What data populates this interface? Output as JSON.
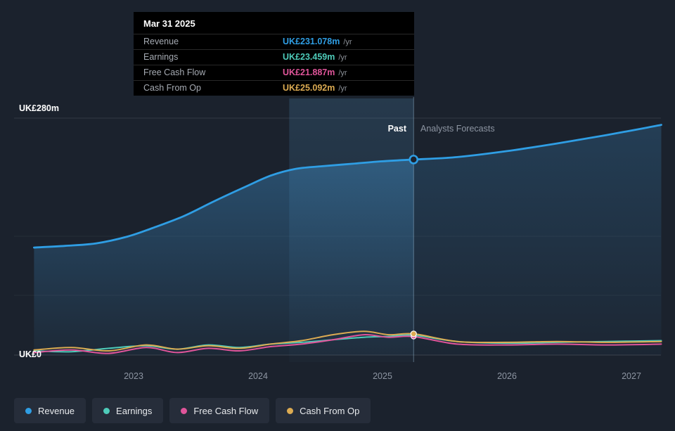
{
  "colors": {
    "background": "#1b222d",
    "revenue": "#2f9ee4",
    "earnings": "#4ecbb9",
    "free_cash_flow": "#e0559a",
    "cash_from_op": "#dcab52"
  },
  "tooltip": {
    "date": "Mar 31 2025",
    "rows": [
      {
        "label": "Revenue",
        "value": "UK£231.078m",
        "suffix": "/yr",
        "color": "#2f9ee4"
      },
      {
        "label": "Earnings",
        "value": "UK£23.459m",
        "suffix": "/yr",
        "color": "#4ecbb9"
      },
      {
        "label": "Free Cash Flow",
        "value": "UK£21.887m",
        "suffix": "/yr",
        "color": "#e0559a"
      },
      {
        "label": "Cash From Op",
        "value": "UK£25.092m",
        "suffix": "/yr",
        "color": "#dcab52"
      }
    ]
  },
  "axis": {
    "y_top_label": "UK£280m",
    "y_bottom_label": "UK£0",
    "x_ticks": [
      2023,
      2024,
      2025,
      2026,
      2027
    ]
  },
  "labels": {
    "past": "Past",
    "forecast": "Analysts Forecasts"
  },
  "legend": [
    {
      "label": "Revenue",
      "color": "#2f9ee4"
    },
    {
      "label": "Earnings",
      "color": "#4ecbb9"
    },
    {
      "label": "Free Cash Flow",
      "color": "#e0559a"
    },
    {
      "label": "Cash From Op",
      "color": "#dcab52"
    }
  ],
  "chart_data": {
    "type": "area",
    "x_unit": "year",
    "title": "",
    "xlabel": "",
    "ylabel": "UK£ millions",
    "ylim": [
      0,
      280
    ],
    "x_ticks": [
      2023,
      2024,
      2025,
      2026,
      2027
    ],
    "y_axis_labels": [
      "UK£0",
      "UK£280m"
    ],
    "divider_x": 2025.25,
    "divider_label_left": "Past",
    "divider_label_right": "Analysts Forecasts",
    "highlight_range": [
      2024.25,
      2025.25
    ],
    "series": [
      {
        "name": "Revenue",
        "color": "#2f9ee4",
        "x": [
          2022.2,
          2022.45,
          2022.7,
          2022.95,
          2023.15,
          2023.4,
          2023.65,
          2023.9,
          2024.1,
          2024.3,
          2024.5,
          2024.75,
          2025.0,
          2025.25,
          2025.6,
          2026.0,
          2026.4,
          2026.8,
          2027.1,
          2027.24
        ],
        "values": [
          127,
          129,
          132,
          140,
          150,
          164,
          182,
          199,
          212,
          220,
          223,
          226,
          229,
          231.078,
          234,
          241,
          250,
          260,
          268,
          272
        ]
      },
      {
        "name": "Earnings",
        "color": "#4ecbb9",
        "x": [
          2022.2,
          2022.5,
          2022.8,
          2023.1,
          2023.35,
          2023.6,
          2023.85,
          2024.1,
          2024.35,
          2024.6,
          2024.85,
          2025.05,
          2025.25,
          2025.6,
          2026.0,
          2026.4,
          2026.8,
          2027.24
        ],
        "values": [
          5,
          4,
          8,
          11,
          7,
          12,
          9,
          13,
          15,
          18,
          21,
          22,
          23.459,
          16,
          14,
          15,
          16,
          17
        ]
      },
      {
        "name": "Free Cash Flow",
        "color": "#e0559a",
        "x": [
          2022.2,
          2022.5,
          2022.8,
          2023.1,
          2023.35,
          2023.6,
          2023.85,
          2024.1,
          2024.35,
          2024.6,
          2024.85,
          2025.05,
          2025.25,
          2025.6,
          2026.0,
          2026.4,
          2026.8,
          2027.24
        ],
        "values": [
          3,
          6,
          2,
          9,
          3,
          8,
          5,
          10,
          13,
          18,
          24,
          21,
          21.887,
          13,
          12,
          13,
          12,
          13
        ]
      },
      {
        "name": "Cash From Op",
        "color": "#dcab52",
        "x": [
          2022.2,
          2022.5,
          2022.8,
          2023.1,
          2023.35,
          2023.6,
          2023.85,
          2024.1,
          2024.35,
          2024.6,
          2024.85,
          2025.05,
          2025.25,
          2025.6,
          2026.0,
          2026.4,
          2026.8,
          2027.24
        ],
        "values": [
          6,
          9,
          5,
          12,
          7,
          11,
          8,
          13,
          17,
          24,
          28,
          24,
          25.092,
          16,
          15,
          16,
          15,
          16
        ]
      }
    ]
  }
}
